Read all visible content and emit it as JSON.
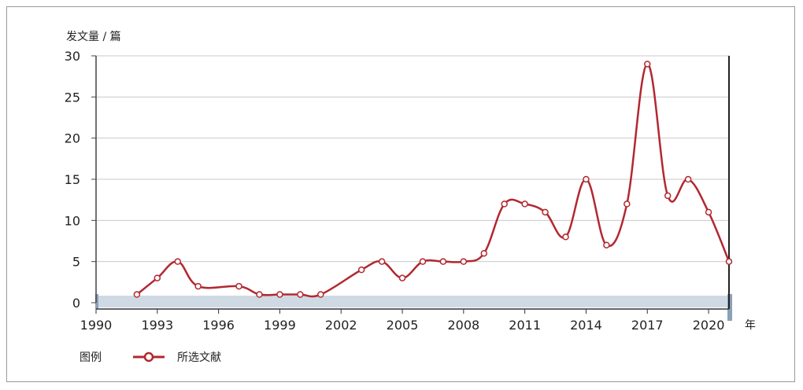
{
  "chart_data": {
    "type": "line",
    "ylabel": "发文量 / 篇",
    "xunit": "年",
    "ylim": [
      0,
      30
    ],
    "yticks": [
      0,
      5,
      10,
      15,
      20,
      25,
      30
    ],
    "xlim": [
      1990,
      2021
    ],
    "xticks": [
      1990,
      1993,
      1996,
      1999,
      2002,
      2005,
      2008,
      2011,
      2014,
      2017,
      2020
    ],
    "grid": true,
    "line_color": "#b22830",
    "series": [
      {
        "name": "所选文献",
        "x": [
          1992,
          1993,
          1994,
          1995,
          1997,
          1998,
          1999,
          2000,
          2001,
          2003,
          2004,
          2005,
          2006,
          2007,
          2008,
          2009,
          2010,
          2011,
          2012,
          2013,
          2014,
          2015,
          2016,
          2017,
          2018,
          2019,
          2020,
          2021
        ],
        "values": [
          1,
          3,
          5,
          2,
          2,
          1,
          1,
          1,
          1,
          4,
          5,
          3,
          5,
          5,
          5,
          6,
          12,
          12,
          11,
          8,
          15,
          7,
          12,
          29,
          13,
          15,
          11,
          5
        ]
      }
    ]
  },
  "legend": {
    "title": "图例",
    "items": [
      "所选文献"
    ]
  }
}
